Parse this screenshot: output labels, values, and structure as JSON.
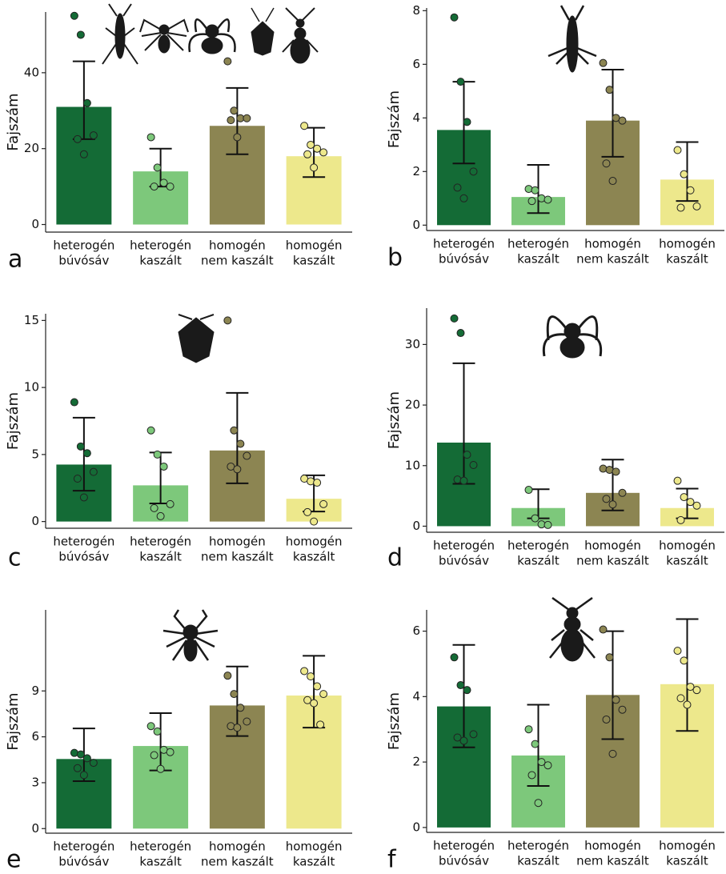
{
  "chart_data": [
    {
      "type": "bar",
      "label": "a",
      "y_label": "Fajszám",
      "categories": [
        [
          "heterogén",
          "búvósáv"
        ],
        [
          "heterogén",
          "kaszált"
        ],
        [
          "homogén",
          "nem kaszált"
        ],
        [
          "homogén",
          "kaszált"
        ]
      ],
      "colors": [
        "#146b36",
        "#7dc87b",
        "#8c8552",
        "#ede88c"
      ],
      "values": [
        31,
        14,
        26,
        18
      ],
      "error_low": [
        22.5,
        10,
        18.5,
        12.5
      ],
      "error_high": [
        43,
        20,
        36,
        25.5
      ],
      "points": [
        [
          55,
          50,
          32,
          23.5,
          22.5,
          18.5
        ],
        [
          23,
          15,
          11,
          10,
          10
        ],
        [
          43,
          30,
          28,
          28,
          27.5,
          23
        ],
        [
          26,
          21,
          20,
          19,
          18.5,
          15
        ]
      ],
      "ylim": [
        -2,
        56
      ],
      "yticks": [
        0,
        20,
        40
      ]
    },
    {
      "type": "bar",
      "label": "b",
      "y_label": "Fajszám",
      "categories": [
        [
          "heterogén",
          "búvósáv"
        ],
        [
          "heterogén",
          "kaszált"
        ],
        [
          "homogén",
          "nem kaszált"
        ],
        [
          "homogén",
          "kaszált"
        ]
      ],
      "colors": [
        "#146b36",
        "#7dc87b",
        "#8c8552",
        "#ede88c"
      ],
      "values": [
        3.55,
        1.05,
        3.9,
        1.7
      ],
      "error_low": [
        2.3,
        0.45,
        2.55,
        0.9
      ],
      "error_high": [
        5.35,
        2.25,
        5.8,
        3.1
      ],
      "points": [
        [
          7.75,
          5.35,
          3.85,
          2.0,
          1.4,
          1.0
        ],
        [
          1.35,
          1.3,
          1.0,
          0.95,
          0.9
        ],
        [
          6.05,
          5.05,
          4.0,
          3.9,
          2.3,
          1.65
        ],
        [
          2.8,
          1.9,
          1.3,
          0.7,
          0.65
        ]
      ],
      "ylim": [
        -0.2,
        8.1
      ],
      "yticks": [
        0,
        2,
        4,
        6,
        8
      ]
    },
    {
      "type": "bar",
      "label": "c",
      "y_label": "Fajszám",
      "categories": [
        [
          "heterogén",
          "búvósáv"
        ],
        [
          "heterogén",
          "kaszált"
        ],
        [
          "homogén",
          "nem kaszált"
        ],
        [
          "homogén",
          "kaszált"
        ]
      ],
      "colors": [
        "#146b36",
        "#7dc87b",
        "#8c8552",
        "#ede88c"
      ],
      "values": [
        4.25,
        2.7,
        5.3,
        1.7
      ],
      "error_low": [
        2.3,
        1.35,
        2.85,
        0.75
      ],
      "error_high": [
        7.75,
        5.15,
        9.6,
        3.45
      ],
      "points": [
        [
          8.9,
          5.6,
          5.1,
          3.7,
          3.2,
          1.8
        ],
        [
          6.8,
          5.0,
          4.1,
          1.3,
          1.0,
          0.4
        ],
        [
          15,
          6.8,
          5.8,
          4.9,
          4.1,
          3.9
        ],
        [
          3.2,
          3.0,
          2.9,
          1.3,
          0.7,
          0
        ]
      ],
      "ylim": [
        -0.5,
        15.5
      ],
      "yticks": [
        0,
        5,
        10,
        15
      ]
    },
    {
      "type": "bar",
      "label": "d",
      "y_label": "Fajszám",
      "categories": [
        [
          "heterogén",
          "búvósáv"
        ],
        [
          "heterogén",
          "kaszált"
        ],
        [
          "homogén",
          "nem kaszált"
        ],
        [
          "homogén",
          "kaszált"
        ]
      ],
      "colors": [
        "#146b36",
        "#7dc87b",
        "#8c8552",
        "#ede88c"
      ],
      "values": [
        13.8,
        3.0,
        5.5,
        3.0
      ],
      "error_low": [
        7,
        1.3,
        2.6,
        1.3
      ],
      "error_high": [
        26.9,
        6.1,
        11,
        6.2
      ],
      "points": [
        [
          34.3,
          31.9,
          11.8,
          10.1,
          7.7,
          7.5
        ],
        [
          6.0,
          1.3,
          0.3,
          0.2
        ],
        [
          9.5,
          9.3,
          9.0,
          5.5,
          4.5,
          3.6
        ],
        [
          7.5,
          4.8,
          4.0,
          3.4,
          1.0
        ]
      ],
      "ylim": [
        -1,
        36
      ],
      "yticks": [
        0,
        10,
        20,
        30
      ]
    },
    {
      "type": "bar",
      "label": "e",
      "y_label": "Fajszám",
      "categories": [
        [
          "heterogén",
          "búvósáv"
        ],
        [
          "heterogén",
          "kaszált"
        ],
        [
          "homogén",
          "nem kaszált"
        ],
        [
          "homogén",
          "kaszált"
        ]
      ],
      "colors": [
        "#146b36",
        "#7dc87b",
        "#8c8552",
        "#ede88c"
      ],
      "values": [
        4.55,
        5.4,
        8.05,
        8.7
      ],
      "error_low": [
        3.1,
        3.8,
        6.05,
        6.6
      ],
      "error_high": [
        6.55,
        7.55,
        10.6,
        11.3
      ],
      "points": [
        [
          4.95,
          4.85,
          4.6,
          4.3,
          3.95,
          3.5
        ],
        [
          6.7,
          6.35,
          5.15,
          5.0,
          4.8,
          3.9
        ],
        [
          10.0,
          8.8,
          7.9,
          7.0,
          6.7,
          6.6
        ],
        [
          10.3,
          9.95,
          9.3,
          8.8,
          8.4,
          8.2,
          6.8
        ]
      ],
      "ylim": [
        -0.3,
        14.3
      ],
      "yticks": [
        0,
        3,
        6,
        9
      ]
    },
    {
      "type": "bar",
      "label": "f",
      "y_label": "Fajszám",
      "categories": [
        [
          "heterogén",
          "búvósáv"
        ],
        [
          "heterogén",
          "kaszált"
        ],
        [
          "homogén",
          "nem kaszált"
        ],
        [
          "homogén",
          "kaszált"
        ]
      ],
      "colors": [
        "#146b36",
        "#7dc87b",
        "#8c8552",
        "#ede88c"
      ],
      "values": [
        3.7,
        2.2,
        4.05,
        4.38
      ],
      "error_low": [
        2.45,
        1.27,
        2.7,
        2.95
      ],
      "error_high": [
        5.58,
        3.75,
        6.0,
        6.37
      ],
      "points": [
        [
          5.2,
          4.35,
          4.2,
          2.85,
          2.75,
          2.65
        ],
        [
          3.0,
          2.55,
          2.0,
          1.9,
          1.6,
          0.75
        ],
        [
          6.05,
          5.2,
          3.9,
          3.6,
          3.3,
          2.25
        ],
        [
          5.4,
          5.1,
          4.3,
          4.2,
          3.95,
          3.75
        ]
      ],
      "ylim": [
        -0.15,
        6.65
      ],
      "yticks": [
        0,
        2,
        4,
        6
      ]
    }
  ]
}
